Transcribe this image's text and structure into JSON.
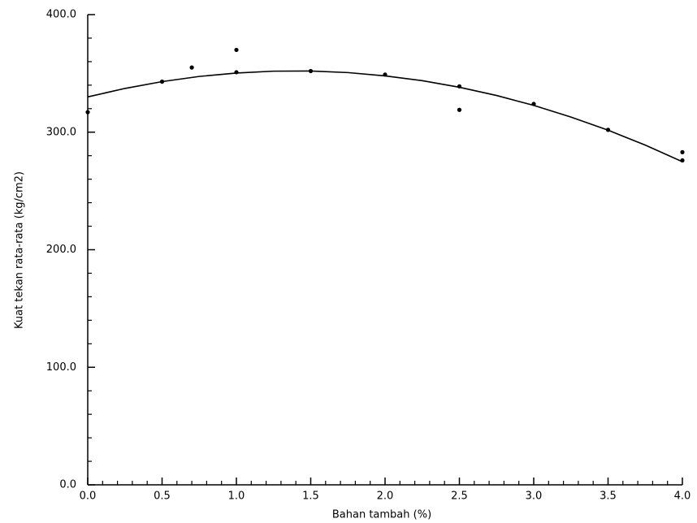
{
  "chart_data": {
    "type": "scatter",
    "x_label": "Bahan tambah (%)",
    "y_label": "Kuat tekan rata-rata (kg/cm2)",
    "xlim": [
      0,
      4
    ],
    "ylim": [
      0,
      400
    ],
    "xticks": [
      {
        "value": 0,
        "label": "0.0"
      },
      {
        "value": 0.5,
        "label": "0.5"
      },
      {
        "value": 1,
        "label": "1.0"
      },
      {
        "value": 1.5,
        "label": "1.5"
      },
      {
        "value": 2,
        "label": "2.0"
      },
      {
        "value": 2.5,
        "label": "2.5"
      },
      {
        "value": 3,
        "label": "3.0"
      },
      {
        "value": 3.5,
        "label": "3.5"
      },
      {
        "value": 4,
        "label": "4.0"
      }
    ],
    "yticks": [
      {
        "value": 0,
        "label": "0.0"
      },
      {
        "value": 100,
        "label": "100.0"
      },
      {
        "value": 200,
        "label": "200.0"
      },
      {
        "value": 300,
        "label": "300.0"
      },
      {
        "value": 400,
        "label": "400.0"
      }
    ],
    "xminorticks": [
      0.1,
      0.2,
      0.3,
      0.4,
      0.6,
      0.7,
      0.8,
      0.9,
      1.1,
      1.2,
      1.3,
      1.4,
      1.6,
      1.7,
      1.8,
      1.9,
      2.1,
      2.2,
      2.3,
      2.4,
      2.6,
      2.7,
      2.8,
      2.9,
      3.1,
      3.2,
      3.3,
      3.4,
      3.6,
      3.7,
      3.8,
      3.9
    ],
    "yminorticks": [
      20,
      40,
      60,
      80,
      120,
      140,
      160,
      180,
      220,
      240,
      260,
      280,
      320,
      340,
      360,
      380
    ],
    "color": "#000000",
    "series": [
      {
        "type": "scatter",
        "x": [
          0,
          0.5,
          0.7,
          1,
          1,
          1.5,
          2,
          2.5,
          2.5,
          3,
          3.5,
          4,
          4
        ],
        "values": [
          317,
          343,
          355,
          370,
          351,
          352,
          349,
          339,
          319,
          324,
          302,
          283,
          276
        ]
      },
      {
        "type": "line",
        "x": [
          0,
          0.25,
          0.5,
          0.75,
          1,
          1.25,
          1.5,
          1.75,
          2,
          2.25,
          2.5,
          2.75,
          3,
          3.25,
          3.5,
          3.75,
          4
        ],
        "values": [
          330,
          337.2,
          343,
          347.4,
          350.3,
          351.9,
          352,
          350.7,
          347.9,
          343.8,
          338.2,
          331.2,
          322.8,
          312.9,
          301.7,
          289,
          274.9
        ]
      }
    ]
  }
}
